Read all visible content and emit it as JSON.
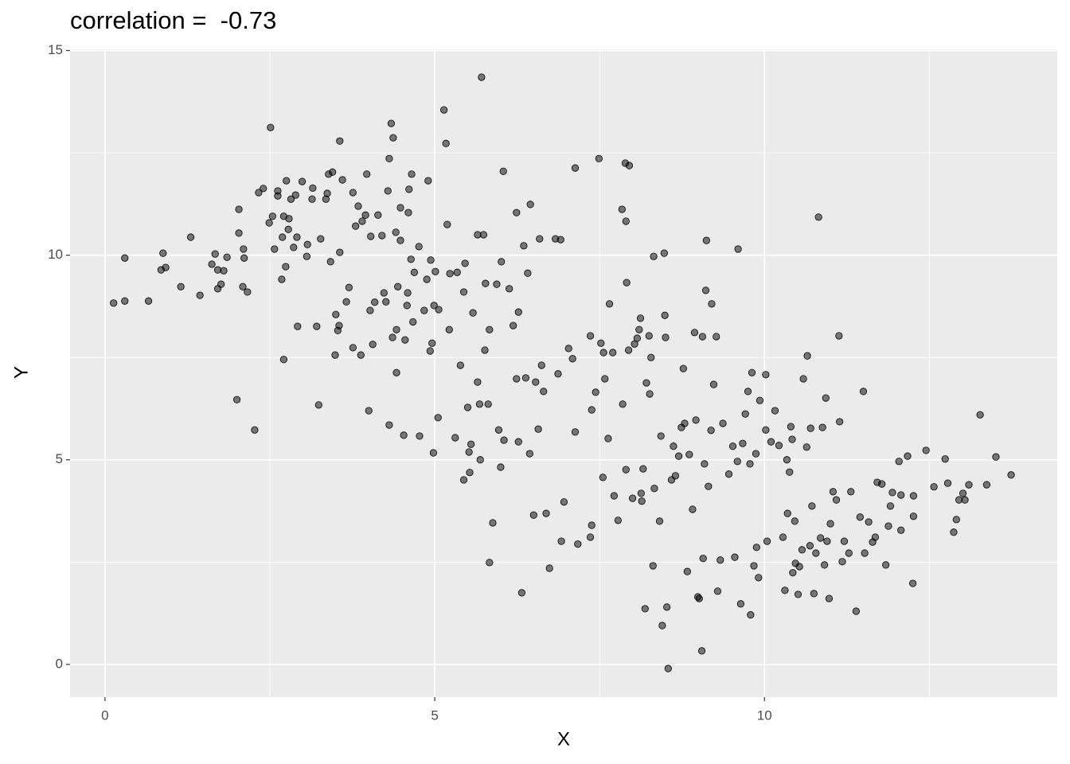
{
  "chart_data": {
    "type": "scatter",
    "title": "correlation =  -0.73",
    "xlabel": "X",
    "ylabel": "Y",
    "xlim": [
      -0.53,
      14.44
    ],
    "ylim": [
      -0.8,
      15.03
    ],
    "xticks": [
      0,
      5,
      10
    ],
    "yticks": [
      0,
      5,
      10,
      15
    ],
    "xminorticks": [
      2.5,
      7.5,
      12.5
    ],
    "yminorticks": [
      2.5,
      7.5,
      12.5
    ],
    "grid": true,
    "color": "#000000",
    "opacity": 0.5,
    "x": [
      0.13,
      0.3,
      0.3,
      0.66,
      0.88,
      0.85,
      0.92,
      1.15,
      1.3,
      1.44,
      1.62,
      1.67,
      1.71,
      1.71,
      1.76,
      1.8,
      1.85,
      2.0,
      2.03,
      2.03,
      2.1,
      2.11,
      2.09,
      2.16,
      2.27,
      2.33,
      2.4,
      2.49,
      2.51,
      2.57,
      2.54,
      2.62,
      2.62,
      2.69,
      2.68,
      2.71,
      2.71,
      2.74,
      2.75,
      2.78,
      2.79,
      2.82,
      2.86,
      2.89,
      2.91,
      2.92,
      2.99,
      3.06,
      3.07,
      3.14,
      3.15,
      3.21,
      3.24,
      3.27,
      3.35,
      3.37,
      3.39,
      3.42,
      3.45,
      3.5,
      3.49,
      3.53,
      3.55,
      3.56,
      3.56,
      3.6,
      3.66,
      3.7,
      3.76,
      3.76,
      3.8,
      3.84,
      3.88,
      3.9,
      3.95,
      3.97,
      4.0,
      4.02,
      4.03,
      4.06,
      4.09,
      4.14,
      4.2,
      4.23,
      4.26,
      4.29,
      4.31,
      4.31,
      4.34,
      4.36,
      4.37,
      4.41,
      4.42,
      4.42,
      4.44,
      4.48,
      4.48,
      4.53,
      4.55,
      4.58,
      4.59,
      4.6,
      4.61,
      4.64,
      4.65,
      4.67,
      4.69,
      4.76,
      4.77,
      4.84,
      4.88,
      4.9,
      4.93,
      4.94,
      4.96,
      4.98,
      4.99,
      5.01,
      5.05,
      5.06,
      5.14,
      5.17,
      5.19,
      5.22,
      5.23,
      5.31,
      5.34,
      5.39,
      5.44,
      5.44,
      5.46,
      5.5,
      5.52,
      5.53,
      5.55,
      5.58,
      5.65,
      5.65,
      5.68,
      5.69,
      5.71,
      5.74,
      5.76,
      5.77,
      5.81,
      5.83,
      5.83,
      5.88,
      5.94,
      5.97,
      6.0,
      6.01,
      6.04,
      6.05,
      6.13,
      6.19,
      6.24,
      6.24,
      6.27,
      6.27,
      6.32,
      6.35,
      6.38,
      6.41,
      6.45,
      6.44,
      6.5,
      6.53,
      6.57,
      6.59,
      6.62,
      6.65,
      6.69,
      6.74,
      6.83,
      6.87,
      6.91,
      6.92,
      6.96,
      7.03,
      7.09,
      7.13,
      7.13,
      7.17,
      7.36,
      7.38,
      7.38,
      7.36,
      7.44,
      7.49,
      7.52,
      7.55,
      7.56,
      7.58,
      7.63,
      7.65,
      7.7,
      7.72,
      7.78,
      7.84,
      7.85,
      7.89,
      7.9,
      7.91,
      7.9,
      7.94,
      7.95,
      8.0,
      8.03,
      8.07,
      8.1,
      8.12,
      8.13,
      8.14,
      8.16,
      8.19,
      8.21,
      8.25,
      8.26,
      8.28,
      8.31,
      8.32,
      8.33,
      8.41,
      8.43,
      8.45,
      8.48,
      8.49,
      8.5,
      8.52,
      8.54,
      8.59,
      8.62,
      8.65,
      8.7,
      8.74,
      8.77,
      8.79,
      8.83,
      8.86,
      8.91,
      8.94,
      8.96,
      8.99,
      9.01,
      9.05,
      9.06,
      9.07,
      9.09,
      9.11,
      9.12,
      9.15,
      9.19,
      9.2,
      9.23,
      9.27,
      9.29,
      9.33,
      9.37,
      9.46,
      9.52,
      9.55,
      9.59,
      9.6,
      9.64,
      9.67,
      9.71,
      9.75,
      9.78,
      9.79,
      9.81,
      9.84,
      9.87,
      9.88,
      9.91,
      9.93,
      10.02,
      10.02,
      10.04,
      10.1,
      10.16,
      10.22,
      10.28,
      10.31,
      10.34,
      10.35,
      10.38,
      10.4,
      10.42,
      10.43,
      10.46,
      10.47,
      10.51,
      10.53,
      10.57,
      10.59,
      10.64,
      10.65,
      10.69,
      10.7,
      10.72,
      10.75,
      10.78,
      10.82,
      10.85,
      10.88,
      10.91,
      10.93,
      10.95,
      10.98,
      11.0,
      11.04,
      11.09,
      11.13,
      11.14,
      11.18,
      11.21,
      11.28,
      11.31,
      11.39,
      11.45,
      11.5,
      11.52,
      11.58,
      11.64,
      11.68,
      11.71,
      11.78,
      11.84,
      11.88,
      11.91,
      11.94,
      12.04,
      12.07,
      12.07,
      12.17,
      12.25,
      12.26,
      12.26,
      12.45,
      12.57,
      12.74,
      12.78,
      12.87,
      12.91,
      12.95,
      13.01,
      13.04,
      13.1,
      13.27,
      13.37,
      13.51,
      13.74
    ],
    "values": [
      8.83,
      9.93,
      8.88,
      8.88,
      10.05,
      9.64,
      9.7,
      9.23,
      10.44,
      9.02,
      9.78,
      10.03,
      9.64,
      9.18,
      9.29,
      9.62,
      9.95,
      6.47,
      11.12,
      10.54,
      10.15,
      9.93,
      9.23,
      9.1,
      5.73,
      11.53,
      11.63,
      10.79,
      13.12,
      10.15,
      10.95,
      11.57,
      11.45,
      10.44,
      9.41,
      7.45,
      10.95,
      9.72,
      11.82,
      10.63,
      10.89,
      11.37,
      10.19,
      11.47,
      10.44,
      8.26,
      11.8,
      9.97,
      10.26,
      11.37,
      11.64,
      8.26,
      6.34,
      10.4,
      11.37,
      11.51,
      11.98,
      9.84,
      12.03,
      8.55,
      7.56,
      8.16,
      8.28,
      10.07,
      12.79,
      11.84,
      8.86,
      9.21,
      7.74,
      11.53,
      10.71,
      11.2,
      7.56,
      10.83,
      10.98,
      11.98,
      6.2,
      8.65,
      10.46,
      7.82,
      8.85,
      10.98,
      10.48,
      9.08,
      8.86,
      11.57,
      12.36,
      5.85,
      13.22,
      7.99,
      12.87,
      10.56,
      7.13,
      8.18,
      9.23,
      11.16,
      10.36,
      5.6,
      7.93,
      8.77,
      9.08,
      11.04,
      11.61,
      9.9,
      11.98,
      8.37,
      9.58,
      10.21,
      5.58,
      8.65,
      9.41,
      11.82,
      7.66,
      9.88,
      7.85,
      5.17,
      8.77,
      9.6,
      6.03,
      8.67,
      13.55,
      12.73,
      10.75,
      8.18,
      9.55,
      5.54,
      9.58,
      7.31,
      9.1,
      4.51,
      9.8,
      6.28,
      5.19,
      4.69,
      5.38,
      8.59,
      10.5,
      6.9,
      6.36,
      5.0,
      14.35,
      10.5,
      7.68,
      9.31,
      6.36,
      8.18,
      2.49,
      3.46,
      9.29,
      5.73,
      4.82,
      9.84,
      12.05,
      5.48,
      9.18,
      8.28,
      11.04,
      6.98,
      8.61,
      5.44,
      1.75,
      10.23,
      7.0,
      9.56,
      11.24,
      5.15,
      3.65,
      6.9,
      5.75,
      10.4,
      7.31,
      6.67,
      3.69,
      2.35,
      10.4,
      7.1,
      10.38,
      3.01,
      3.97,
      7.72,
      7.47,
      12.13,
      5.68,
      2.94,
      8.03,
      6.22,
      3.4,
      3.11,
      6.65,
      12.36,
      7.85,
      4.57,
      7.62,
      6.98,
      5.52,
      8.81,
      7.62,
      4.12,
      3.52,
      11.12,
      6.36,
      12.25,
      10.83,
      9.33,
      4.76,
      7.68,
      12.19,
      4.06,
      7.83,
      7.97,
      8.18,
      8.46,
      4.18,
      3.99,
      4.78,
      1.36,
      6.88,
      8.03,
      6.61,
      7.5,
      2.41,
      9.97,
      4.3,
      3.5,
      5.58,
      0.95,
      10.05,
      8.53,
      7.99,
      1.4,
      -0.1,
      4.51,
      5.33,
      4.61,
      5.09,
      5.79,
      7.23,
      5.89,
      2.27,
      5.13,
      3.79,
      8.11,
      5.97,
      1.65,
      1.61,
      0.33,
      8.01,
      2.59,
      4.9,
      9.14,
      10.36,
      4.35,
      5.72,
      8.81,
      6.84,
      8.01,
      1.79,
      2.55,
      5.89,
      4.65,
      5.33,
      2.62,
      4.96,
      10.15,
      1.48,
      5.4,
      6.12,
      6.67,
      4.9,
      1.21,
      7.13,
      2.41,
      5.15,
      2.86,
      2.12,
      6.45,
      7.08,
      5.73,
      3.01,
      5.44,
      6.2,
      5.35,
      3.11,
      1.81,
      5.0,
      3.69,
      4.7,
      5.81,
      5.5,
      2.24,
      3.5,
      2.47,
      1.71,
      2.39,
      2.8,
      6.98,
      5.31,
      7.54,
      2.9,
      5.77,
      3.87,
      1.73,
      2.72,
      10.93,
      3.09,
      5.79,
      2.43,
      6.51,
      3.01,
      1.61,
      3.44,
      4.22,
      4.02,
      8.03,
      5.93,
      2.51,
      3.01,
      2.72,
      4.22,
      1.3,
      3.6,
      6.67,
      2.72,
      3.48,
      2.99,
      3.11,
      4.45,
      4.41,
      2.43,
      3.38,
      3.87,
      4.2,
      4.96,
      3.28,
      4.14,
      5.09,
      1.98,
      3.62,
      4.12,
      5.23,
      4.34,
      5.02,
      4.43,
      3.23,
      3.54,
      4.02,
      4.18,
      4.02,
      4.39,
      6.1,
      4.39,
      5.07,
      4.63
    ]
  }
}
